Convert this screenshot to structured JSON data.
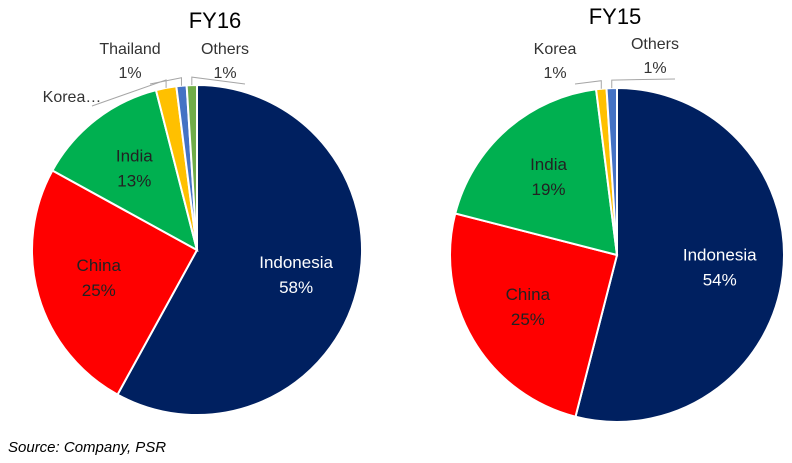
{
  "chart_data": [
    {
      "type": "pie",
      "title": "FY16",
      "categories": [
        "Indonesia",
        "China",
        "India",
        "Korea…",
        "Thailand",
        "Others"
      ],
      "values": [
        58,
        25,
        13,
        2,
        1,
        1
      ],
      "value_labels": [
        "58%",
        "25%",
        "13%",
        null,
        "1%",
        "1%"
      ],
      "colors": [
        "#002060",
        "#ff0000",
        "#00b050",
        "#ffc000",
        "#4472c4",
        "#70ad47"
      ]
    },
    {
      "type": "pie",
      "title": "FY15",
      "categories": [
        "Indonesia",
        "China",
        "India",
        "Korea",
        "Others"
      ],
      "values": [
        54,
        25,
        19,
        1,
        1
      ],
      "value_labels": [
        "54%",
        "25%",
        "19%",
        "1%",
        "1%"
      ],
      "colors": [
        "#002060",
        "#ff0000",
        "#00b050",
        "#ffc000",
        "#4472c4"
      ]
    }
  ],
  "source": "Source: Company, PSR"
}
